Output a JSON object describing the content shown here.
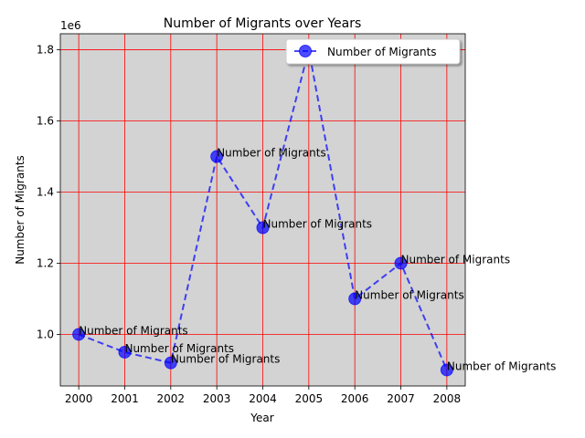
{
  "chart_data": {
    "type": "line",
    "title": "Number of Migrants over Years",
    "xlabel": "Year",
    "ylabel": "Number of Migrants",
    "y_offset_label": "1e6",
    "x_ticks": [
      "2000",
      "2001",
      "2002",
      "2003",
      "2004",
      "2005",
      "2006",
      "2007",
      "2008"
    ],
    "y_ticks": [
      {
        "value": 1.0,
        "label": "1.0"
      },
      {
        "value": 1.2,
        "label": "1.2"
      },
      {
        "value": 1.4,
        "label": "1.4"
      },
      {
        "value": 1.6,
        "label": "1.6"
      },
      {
        "value": 1.8,
        "label": "1.8"
      }
    ],
    "x": [
      2000,
      2001,
      2002,
      2003,
      2004,
      2005,
      2006,
      2007,
      2008
    ],
    "xlim": [
      1999.6,
      2008.4
    ],
    "ylim": [
      855000,
      1845000
    ],
    "y_scale_factor": 1000000,
    "grid": true,
    "grid_color": "#ff0000",
    "plot_background": "#d3d3d3",
    "legend_position": "top-right",
    "series": [
      {
        "name": "Number of Migrants",
        "values": [
          1000000,
          950000,
          920000,
          1500000,
          1300000,
          1800000,
          1100000,
          1200000,
          900000
        ],
        "color": "#0000ff",
        "line_style": "dashed",
        "marker": "circle",
        "point_label": "Number of Migrants"
      }
    ]
  }
}
